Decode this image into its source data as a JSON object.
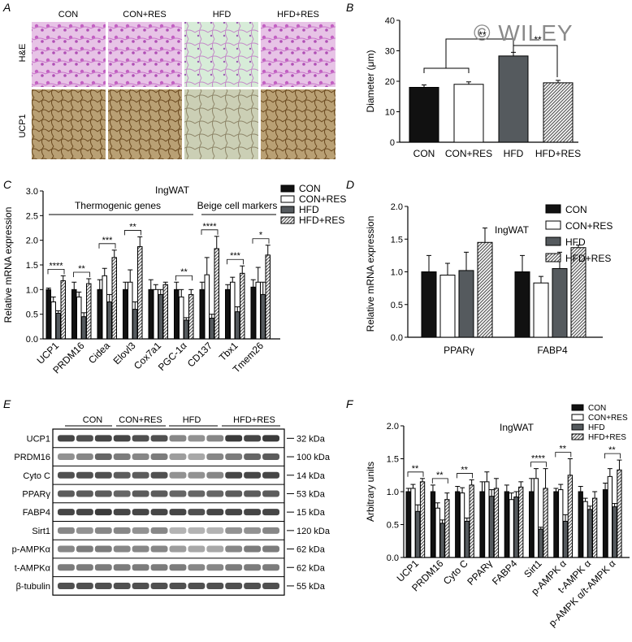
{
  "watermark": "© WILEY",
  "colors": {
    "black": "#111111",
    "white": "#ffffff",
    "gray": "#555a5e",
    "hatch": "#7a7a7a",
    "he": "#d98ad6",
    "ucp1": "#a98a55"
  },
  "panel_a": {
    "letter": "A",
    "columns": [
      "CON",
      "CON+RES",
      "HFD",
      "HFD+RES"
    ],
    "rows": [
      "H&E",
      "UCP1"
    ]
  },
  "chart_data": [
    {
      "id": "B",
      "letter": "B",
      "type": "bar",
      "ylabel": "Diameter (μm)",
      "ylim": [
        0,
        40
      ],
      "yticks": [
        0,
        10,
        20,
        30,
        40
      ],
      "categories": [
        "CON",
        "CON+RES",
        "HFD",
        "HFD+RES"
      ],
      "values": [
        18,
        19,
        28.3,
        19.5
      ],
      "errors": [
        0.8,
        0.8,
        1.2,
        0.8
      ],
      "annotations": [
        "**",
        "**"
      ]
    },
    {
      "id": "C",
      "letter": "C",
      "type": "bar",
      "title": "IngWAT",
      "ylabel": "Relative mRNA expression",
      "ylim": [
        0,
        3
      ],
      "yticks": [
        "0.0",
        "0.5",
        "1.0",
        "1.5",
        "2.0",
        "2.5",
        "3.0"
      ],
      "group_headers": [
        "Thermogenic genes",
        "Beige cell markers"
      ],
      "categories": [
        "UCP1",
        "PRDM16",
        "Cidea",
        "Elovl3",
        "Cox7a1",
        "PGC-1α",
        "CD137",
        "Tbx1",
        "Tmem26"
      ],
      "series": [
        {
          "name": "CON",
          "values": [
            1.0,
            1.0,
            1.0,
            1.0,
            1.0,
            1.0,
            1.0,
            1.0,
            1.05
          ]
        },
        {
          "name": "CON+RES",
          "values": [
            0.75,
            0.85,
            1.28,
            1.15,
            1.0,
            0.85,
            1.3,
            1.15,
            1.15
          ]
        },
        {
          "name": "HFD",
          "values": [
            0.52,
            0.45,
            0.75,
            0.6,
            0.9,
            0.38,
            0.42,
            0.55,
            0.9
          ]
        },
        {
          "name": "HFD+RES",
          "values": [
            1.18,
            1.12,
            1.65,
            1.87,
            1.1,
            0.9,
            1.83,
            1.33,
            1.7
          ]
        }
      ],
      "errors": [
        [
          0.03,
          0.15,
          0.2,
          0.15,
          0.2,
          0.15,
          0.15,
          0.1,
          0.15
        ],
        [
          0.1,
          0.1,
          0.15,
          0.25,
          0.1,
          0.15,
          0.35,
          0.1,
          0.3
        ],
        [
          0.05,
          0.08,
          0.15,
          0.15,
          0.1,
          0.05,
          0.08,
          0.1,
          0.25
        ],
        [
          0.1,
          0.1,
          0.15,
          0.2,
          0.05,
          0.1,
          0.25,
          0.15,
          0.2
        ]
      ],
      "stars": [
        "****",
        "**",
        "***",
        "**",
        "",
        "**",
        "****",
        "***",
        "*"
      ]
    },
    {
      "id": "D",
      "letter": "D",
      "type": "bar",
      "title": "IngWAT",
      "ylabel": "Relative mRNA expression",
      "ylim": [
        0,
        2
      ],
      "yticks": [
        "0.0",
        "0.5",
        "1.0",
        "1.5",
        "2.0"
      ],
      "categories": [
        "PPARγ",
        "FABP4"
      ],
      "series": [
        {
          "name": "CON",
          "values": [
            1.0,
            1.0
          ]
        },
        {
          "name": "CON+RES",
          "values": [
            0.95,
            0.83
          ]
        },
        {
          "name": "HFD",
          "values": [
            1.02,
            1.05
          ]
        },
        {
          "name": "HFD+RES",
          "values": [
            1.45,
            1.37
          ]
        }
      ],
      "errors": [
        [
          0.25,
          0.25
        ],
        [
          0.18,
          0.1
        ],
        [
          0.28,
          0.25
        ],
        [
          0.22,
          0.04
        ]
      ]
    },
    {
      "id": "F",
      "letter": "F",
      "type": "bar",
      "title": "IngWAT",
      "ylabel": "Arbitrary units",
      "ylim": [
        0,
        2
      ],
      "yticks": [
        "0.0",
        "0.5",
        "1.0",
        "1.5",
        "2.0"
      ],
      "categories": [
        "UCP1",
        "PRDM16",
        "Cyto C",
        "PPARγ",
        "FABP4",
        "Sirt1",
        "p-AMPK α",
        "t-AMPK α",
        "p-AMPK α/t-AMPK α"
      ],
      "series": [
        {
          "name": "CON",
          "values": [
            1.0,
            1.0,
            1.0,
            1.0,
            1.0,
            1.0,
            1.0,
            1.0,
            1.03
          ]
        },
        {
          "name": "CON+RES",
          "values": [
            1.05,
            0.75,
            0.98,
            1.15,
            0.88,
            1.2,
            1.03,
            0.85,
            1.23
          ]
        },
        {
          "name": "HFD",
          "values": [
            0.7,
            0.52,
            0.55,
            0.93,
            0.92,
            0.43,
            0.55,
            0.73,
            0.77
          ]
        },
        {
          "name": "HFD+RES",
          "values": [
            1.15,
            0.88,
            1.1,
            1.05,
            1.07,
            1.05,
            1.25,
            0.9,
            1.33
          ]
        }
      ],
      "errors": [
        [
          0.05,
          0.1,
          0.08,
          0.15,
          0.1,
          0.2,
          0.05,
          0.08,
          0.1
        ],
        [
          0.06,
          0.08,
          0.08,
          0.15,
          0.1,
          0.15,
          0.08,
          0.05,
          0.12
        ],
        [
          0.1,
          0.05,
          0.05,
          0.1,
          0.08,
          0.03,
          0.1,
          0.05,
          0.05
        ],
        [
          0.05,
          0.1,
          0.08,
          0.15,
          0.08,
          0.3,
          0.25,
          0.1,
          0.15
        ]
      ],
      "stars": [
        "**",
        "**",
        "**",
        "",
        "",
        "****",
        "**",
        "",
        "**"
      ]
    }
  ],
  "panel_e": {
    "letter": "E",
    "groups": [
      "CON",
      "CON+RES",
      "HFD",
      "HFD+RES"
    ],
    "bands": [
      {
        "name": "UCP1",
        "kda": "32 kDa"
      },
      {
        "name": "PRDM16",
        "kda": "100 kDa"
      },
      {
        "name": "Cyto C",
        "kda": "14 kDa"
      },
      {
        "name": "PPARγ",
        "kda": "53 kDa"
      },
      {
        "name": "FABP4",
        "kda": "15 kDa"
      },
      {
        "name": "Sirt1",
        "kda": "120 kDa"
      },
      {
        "name": "p-AMPKα",
        "kda": "62 kDa"
      },
      {
        "name": "t-AMPKα",
        "kda": "62 kDa"
      },
      {
        "name": "β-tubulin",
        "kda": "55 kDa"
      }
    ]
  }
}
